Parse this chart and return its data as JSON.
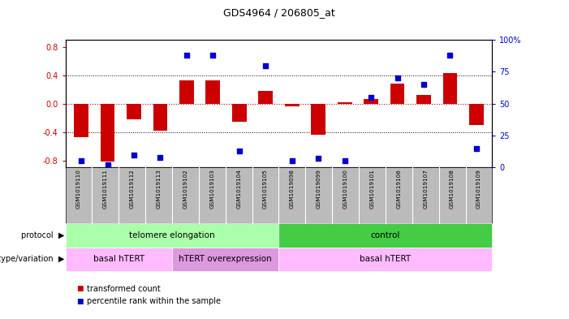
{
  "title": "GDS4964 / 206805_at",
  "samples": [
    "GSM1019110",
    "GSM1019111",
    "GSM1019112",
    "GSM1019113",
    "GSM1019102",
    "GSM1019103",
    "GSM1019104",
    "GSM1019105",
    "GSM1019098",
    "GSM1019099",
    "GSM1019100",
    "GSM1019101",
    "GSM1019106",
    "GSM1019107",
    "GSM1019108",
    "GSM1019109"
  ],
  "bar_values": [
    -0.47,
    -0.82,
    -0.22,
    -0.38,
    0.33,
    0.33,
    -0.25,
    0.18,
    -0.04,
    -0.44,
    0.02,
    0.06,
    0.28,
    0.12,
    0.43,
    -0.3
  ],
  "dot_values": [
    5,
    2,
    10,
    8,
    88,
    88,
    13,
    80,
    5,
    7,
    5,
    55,
    70,
    65,
    88,
    15
  ],
  "ylim_left": [
    -0.9,
    0.9
  ],
  "ylim_right": [
    0,
    100
  ],
  "yticks_left": [
    -0.8,
    -0.4,
    0.0,
    0.4,
    0.8
  ],
  "yticks_right": [
    0,
    25,
    50,
    75,
    100
  ],
  "ytick_labels_right": [
    "0",
    "25",
    "50",
    "75",
    "100%"
  ],
  "bar_color": "#cc0000",
  "dot_color": "#0000cc",
  "zero_line_color": "#cc0000",
  "protocol_groups": [
    {
      "label": "telomere elongation",
      "start": 0,
      "end": 7,
      "color": "#aaffaa"
    },
    {
      "label": "control",
      "start": 8,
      "end": 15,
      "color": "#44cc44"
    }
  ],
  "genotype_groups": [
    {
      "label": "basal hTERT",
      "start": 0,
      "end": 3,
      "color": "#ffbbff"
    },
    {
      "label": "hTERT overexpression",
      "start": 4,
      "end": 7,
      "color": "#dd99dd"
    },
    {
      "label": "basal hTERT",
      "start": 8,
      "end": 15,
      "color": "#ffbbff"
    }
  ],
  "legend_items": [
    {
      "label": "transformed count",
      "color": "#cc0000"
    },
    {
      "label": "percentile rank within the sample",
      "color": "#0000cc"
    }
  ],
  "bg_color": "#ffffff",
  "plot_bg_color": "#ffffff",
  "tick_area_color": "#bbbbbb"
}
